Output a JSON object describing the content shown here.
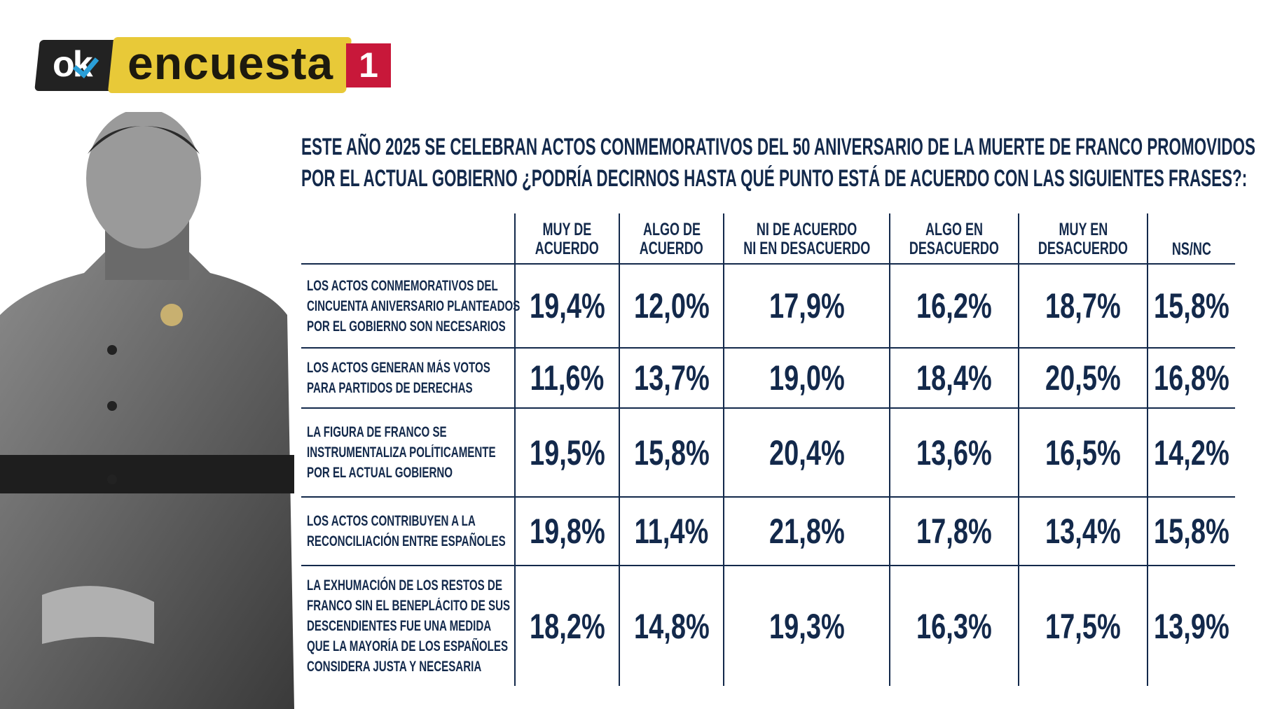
{
  "logo": {
    "ok": "ok",
    "brand": "encuesta",
    "number": "1",
    "colors": {
      "black": "#222222",
      "yellow": "#e8c938",
      "red": "#c8183a",
      "check": "#2a9fd8"
    }
  },
  "title": {
    "line1": "ESTE AÑO 2025 SE CELEBRAN ACTOS CONMEMORATIVOS DEL 50 ANIVERSARIO DE LA MUERTE DE FRANCO PROMOVIDOS",
    "line2": "POR EL ACTUAL GOBIERNO ¿PODRÍA DECIRNOS HASTA QUÉ PUNTO ESTÁ DE ACUERDO CON LAS SIGUIENTES FRASES?:"
  },
  "table": {
    "columns": [
      {
        "line1": "MUY DE",
        "line2": "ACUERDO"
      },
      {
        "line1": "ALGO DE",
        "line2": "ACUERDO"
      },
      {
        "line1": "NI DE ACUERDO",
        "line2": "NI EN DESACUERDO"
      },
      {
        "line1": "ALGO EN",
        "line2": "DESACUERDO"
      },
      {
        "line1": "MUY EN",
        "line2": "DESACUERDO"
      },
      {
        "line1": "",
        "line2": "NS/NC"
      }
    ],
    "rows": [
      {
        "label": [
          "LOS ACTOS CONMEMORATIVOS DEL",
          "CINCUENTA ANIVERSARIO PLANTEADOS",
          "POR EL GOBIERNO SON NECESARIOS"
        ],
        "values": [
          "19,4%",
          "12,0%",
          "17,9%",
          "16,2%",
          "18,7%",
          "15,8%"
        ]
      },
      {
        "label": [
          "LOS ACTOS GENERAN MÁS VOTOS",
          "PARA PARTIDOS DE DERECHAS"
        ],
        "values": [
          "11,6%",
          "13,7%",
          "19,0%",
          "18,4%",
          "20,5%",
          "16,8%"
        ]
      },
      {
        "label": [
          "LA FIGURA DE FRANCO SE",
          "INSTRUMENTALIZA POLÍTICAMENTE",
          "POR EL ACTUAL GOBIERNO"
        ],
        "values": [
          "19,5%",
          "15,8%",
          "20,4%",
          "13,6%",
          "16,5%",
          "14,2%"
        ]
      },
      {
        "label": [
          "LOS ACTOS CONTRIBUYEN A LA",
          "RECONCILIACIÓN ENTRE ESPAÑOLES"
        ],
        "values": [
          "19,8%",
          "11,4%",
          "21,8%",
          "17,8%",
          "13,4%",
          "15,8%"
        ]
      },
      {
        "label": [
          "LA EXHUMACIÓN DE LOS RESTOS DE",
          "FRANCO SIN EL BENEPLÁCITO DE SUS",
          "DESCENDIENTES FUE UNA MEDIDA",
          "QUE LA MAYORÍA DE LOS ESPAÑOLES",
          "CONSIDERA JUSTA Y NECESARIA"
        ],
        "values": [
          "18,2%",
          "14,8%",
          "19,3%",
          "16,3%",
          "17,5%",
          "13,9%"
        ]
      }
    ]
  },
  "colors": {
    "text": "#13294b"
  }
}
